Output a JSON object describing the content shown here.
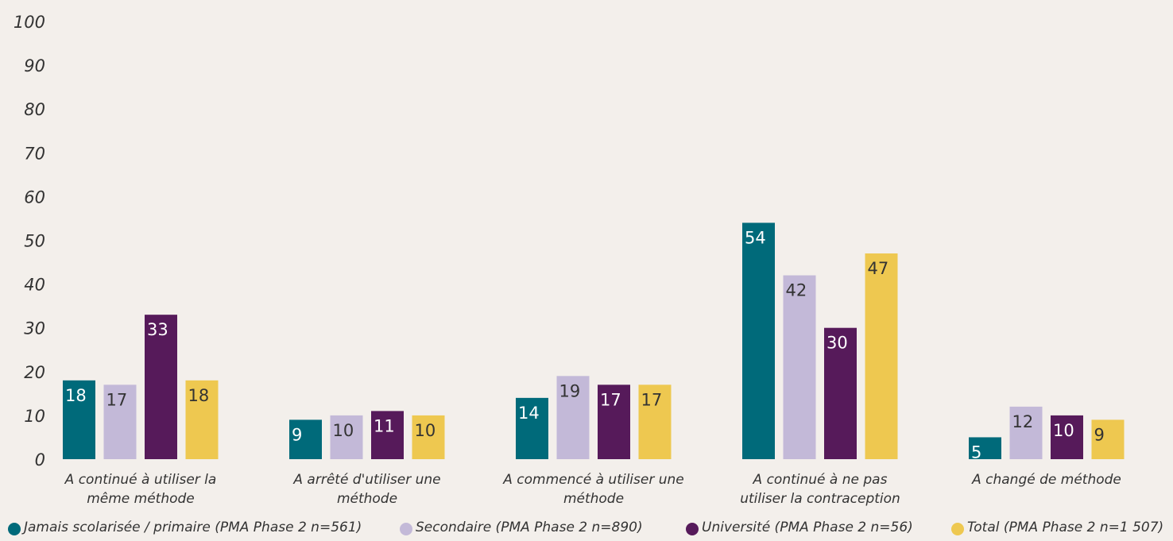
{
  "chart_data": {
    "type": "bar",
    "categories": [
      "A continué à utiliser la même méthode",
      "A arrêté d'utiliser une méthode",
      "A commencé à utiliser une méthode",
      "A continué à ne pas utiliser la contraception",
      "A changé de méthode"
    ],
    "series": [
      {
        "name": "Jamais scolarisée / primaire (PMA Phase 2 n=561)",
        "color": "#006a7a",
        "values": [
          18,
          9,
          14,
          54,
          5
        ]
      },
      {
        "name": "Secondaire (PMA Phase 2 n=890)",
        "color": "#c3b9d8",
        "values": [
          17,
          10,
          19,
          42,
          12
        ]
      },
      {
        "name": "Université (PMA Phase 2 n=56)",
        "color": "#561a5a",
        "values": [
          33,
          11,
          17,
          30,
          10
        ]
      },
      {
        "name": "Total (PMA Phase 2 n=1 507)",
        "color": "#eec850",
        "values": [
          18,
          10,
          17,
          47,
          9
        ]
      }
    ],
    "ylim": [
      0,
      100
    ],
    "yticks": [
      0,
      10,
      20,
      30,
      40,
      50,
      60,
      70,
      80,
      90,
      100
    ],
    "legend": "bottom"
  }
}
